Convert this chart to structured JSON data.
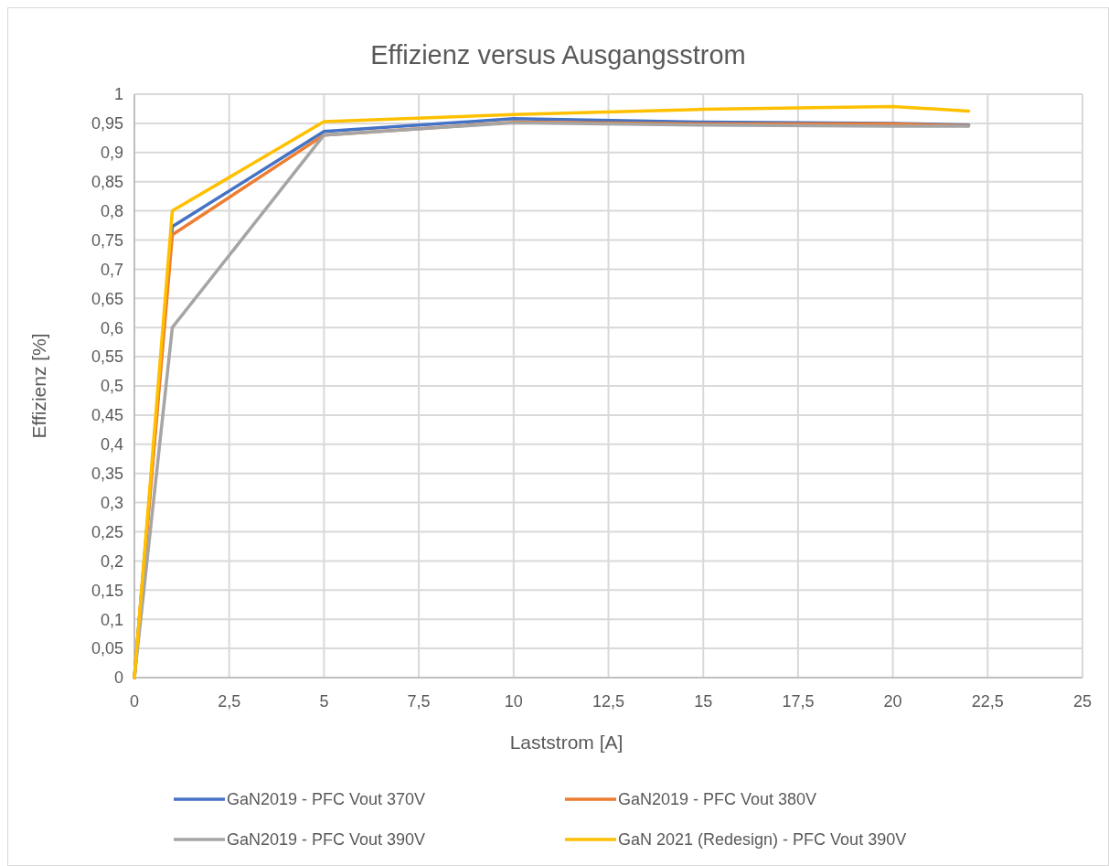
{
  "chart_data": {
    "type": "line",
    "title": "Effizienz versus Ausgangsstrom",
    "xlabel": "Laststrom [A]",
    "ylabel": "Effizienz [%]",
    "x": [
      0,
      1,
      5,
      10,
      15,
      20,
      22
    ],
    "series": [
      {
        "name": "GaN2019 - PFC Vout 370V",
        "color": "#4472c4",
        "values": [
          0,
          0.773,
          0.936,
          0.958,
          0.952,
          0.95,
          0.947
        ]
      },
      {
        "name": "GaN2019 - PFC Vout 380V",
        "color": "#ed7d31",
        "values": [
          0,
          0.759,
          0.93,
          0.952,
          0.949,
          0.949,
          0.946
        ]
      },
      {
        "name": "GaN2019 - PFC Vout 390V",
        "color": "#a5a5a5",
        "values": [
          0,
          0.6,
          0.93,
          0.951,
          0.947,
          0.945,
          0.945
        ]
      },
      {
        "name": "GaN 2021 (Redesign) - PFC Vout 390V",
        "color": "#ffc000",
        "values": [
          0,
          0.8,
          0.953,
          0.965,
          0.974,
          0.979,
          0.971
        ]
      }
    ],
    "xlim": [
      0,
      25
    ],
    "xticks": [
      0,
      {
        "value": 2.5,
        "label": "2,5"
      },
      5,
      {
        "value": 7.5,
        "label": "7,5"
      },
      10,
      {
        "value": 12.5,
        "label": "12,5"
      },
      15,
      {
        "value": 17.5,
        "label": "17,5"
      },
      20,
      {
        "value": 22.5,
        "label": "22,5"
      },
      25
    ],
    "ylim": [
      0,
      1
    ],
    "yticks": [
      0,
      {
        "value": 0.05,
        "label": "0,05"
      },
      {
        "value": 0.1,
        "label": "0,1"
      },
      {
        "value": 0.15,
        "label": "0,15"
      },
      {
        "value": 0.2,
        "label": "0,2"
      },
      {
        "value": 0.25,
        "label": "0,25"
      },
      {
        "value": 0.3,
        "label": "0,3"
      },
      {
        "value": 0.35,
        "label": "0,35"
      },
      {
        "value": 0.4,
        "label": "0,4"
      },
      {
        "value": 0.45,
        "label": "0,45"
      },
      {
        "value": 0.5,
        "label": "0,5"
      },
      {
        "value": 0.55,
        "label": "0,55"
      },
      {
        "value": 0.6,
        "label": "0,6"
      },
      {
        "value": 0.65,
        "label": "0,65"
      },
      {
        "value": 0.7,
        "label": "0,7"
      },
      {
        "value": 0.75,
        "label": "0,75"
      },
      {
        "value": 0.8,
        "label": "0,8"
      },
      {
        "value": 0.85,
        "label": "0,85"
      },
      {
        "value": 0.9,
        "label": "0,9"
      },
      {
        "value": 0.95,
        "label": "0,95"
      },
      1
    ],
    "grid": true,
    "legend": "bottom",
    "marker": "none",
    "line_style": "solid"
  }
}
